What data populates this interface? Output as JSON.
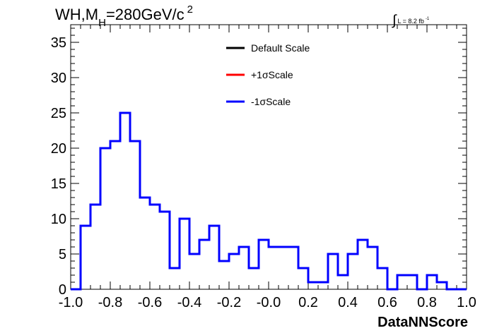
{
  "chart_data": {
    "type": "histogram-step",
    "title_main": "WH,M",
    "title_sub": "H",
    "title_rest": "=280GeV/c",
    "title_sup": "2",
    "lumi_integral": "∫",
    "lumi_text": "L = 8.2 fb",
    "lumi_sup": "-1",
    "xlabel": "DataNNScore",
    "xlim": [
      -1.0,
      1.0
    ],
    "ylim": [
      0,
      37.5
    ],
    "x_ticks": [
      "-1.0",
      "-0.8",
      "-0.6",
      "-0.4",
      "-0.2",
      "-0.0",
      "0.2",
      "0.4",
      "0.6",
      "0.8",
      "1.0"
    ],
    "y_ticks": [
      "0",
      "5",
      "10",
      "15",
      "20",
      "25",
      "30",
      "35"
    ],
    "legend": [
      {
        "label": "Default Scale",
        "color": "#000000"
      },
      {
        "label": "+1σScale",
        "color": "#ff0000"
      },
      {
        "label": "-1σScale",
        "color": "#0000ff"
      }
    ],
    "bin_edges_start": -1.0,
    "bin_width": 0.05,
    "series": [
      {
        "name": "-1σScale",
        "color": "#0000ff",
        "values": [
          0,
          9,
          12,
          20,
          21,
          25,
          21,
          13,
          12,
          11,
          3,
          10,
          5,
          7,
          9,
          4,
          5,
          6,
          3,
          7,
          6,
          6,
          6,
          3,
          1,
          1,
          5,
          2,
          5,
          7,
          6,
          3,
          0,
          2,
          2,
          0,
          2,
          1,
          0,
          0
        ]
      }
    ]
  }
}
